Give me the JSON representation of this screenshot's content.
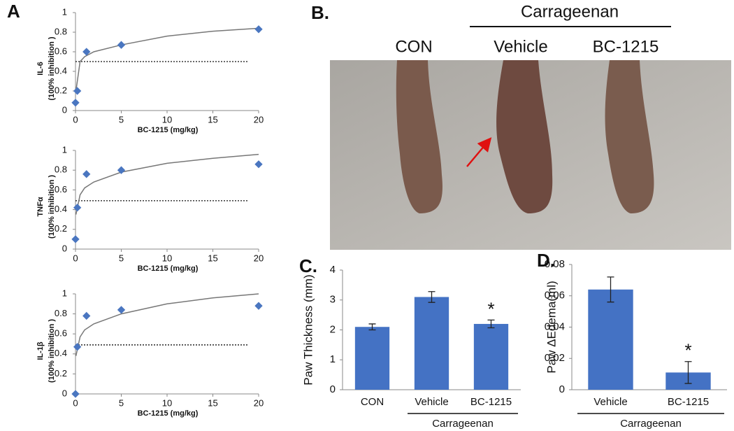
{
  "chart_data": [
    {
      "type": "scatter",
      "panel_label": "A",
      "ylabel": [
        "IL-6",
        "(100% inhibition )"
      ],
      "xlabel": "BC-1215 (mg/kg)",
      "x": [
        0,
        0.2,
        1.2,
        5,
        20
      ],
      "values": [
        0.08,
        0.2,
        0.6,
        0.67,
        0.83
      ],
      "color": "#4a76c0",
      "fit": {
        "x": [
          0.05,
          0.5,
          1,
          2,
          5,
          10,
          15,
          20
        ],
        "values": [
          0.2,
          0.5,
          0.55,
          0.6,
          0.67,
          0.76,
          0.81,
          0.84
        ],
        "color": "#777777"
      },
      "threshold": 0.5,
      "xlim": [
        0,
        20
      ],
      "xticks": [
        0,
        5,
        10,
        15,
        20
      ],
      "ylim": [
        0,
        1
      ],
      "yticks": [
        0,
        0.2,
        0.4,
        0.6,
        0.8,
        1
      ]
    },
    {
      "type": "scatter",
      "ylabel": [
        "TNFα",
        "(100% inhibition )"
      ],
      "xlabel": "BC-1215 (mg/kg)",
      "x": [
        0,
        0.2,
        1.2,
        5,
        20
      ],
      "values": [
        0.1,
        0.42,
        0.76,
        0.8,
        0.86
      ],
      "color": "#4a76c0",
      "fit": {
        "x": [
          0.05,
          0.5,
          1,
          2,
          5,
          10,
          15,
          20
        ],
        "values": [
          0.35,
          0.55,
          0.62,
          0.68,
          0.78,
          0.87,
          0.92,
          0.96
        ],
        "color": "#777777"
      },
      "threshold": 0.49,
      "xlim": [
        0,
        20
      ],
      "xticks": [
        0,
        5,
        10,
        15,
        20
      ],
      "ylim": [
        0,
        1
      ],
      "yticks": [
        0,
        0.2,
        0.4,
        0.6,
        0.8,
        1
      ]
    },
    {
      "type": "scatter",
      "ylabel": [
        "IL-1β",
        "(100% inhibition )"
      ],
      "xlabel": "BC-1215 (mg/kg)",
      "x": [
        0,
        0.2,
        1.2,
        5,
        20
      ],
      "values": [
        0,
        0.47,
        0.78,
        0.84,
        0.88
      ],
      "color": "#4a76c0",
      "fit": {
        "x": [
          0.05,
          0.5,
          1,
          2,
          5,
          10,
          15,
          20
        ],
        "values": [
          0.38,
          0.57,
          0.64,
          0.7,
          0.8,
          0.9,
          0.96,
          1.0
        ],
        "color": "#777777"
      },
      "threshold": 0.49,
      "xlim": [
        0,
        20
      ],
      "xticks": [
        0,
        5,
        10,
        15,
        20
      ],
      "ylim": [
        0,
        1
      ],
      "yticks": [
        0,
        0.2,
        0.4,
        0.6,
        0.8,
        1
      ]
    },
    {
      "type": "bar",
      "panel_label": "C.",
      "ylabel": "Paw Thickness (mm)",
      "categories": [
        "CON",
        "Vehicle",
        "BC-1215"
      ],
      "category_groups": [
        null,
        "Carrageenan",
        "Carrageenan"
      ],
      "values": [
        2.1,
        3.1,
        2.2
      ],
      "errors": [
        0.1,
        0.18,
        0.13
      ],
      "value_annotations": [
        null,
        null,
        "*"
      ],
      "color": "#4472c4",
      "ylim": [
        0,
        4
      ],
      "yticks": [
        0,
        1,
        2,
        3,
        4
      ]
    },
    {
      "type": "bar",
      "panel_label": "D.",
      "ylabel": "Paw ΔEdema(ml)",
      "categories": [
        "Vehicle",
        "BC-1215"
      ],
      "category_groups": [
        "Carrageenan",
        "Carrageenan"
      ],
      "values": [
        0.064,
        0.011
      ],
      "errors": [
        0.008,
        0.007
      ],
      "value_annotations": [
        null,
        "*"
      ],
      "color": "#4472c4",
      "ylim": [
        0,
        0.08
      ],
      "yticks": [
        0,
        0.02,
        0.04,
        0.06,
        0.08
      ]
    }
  ],
  "photo_panel": {
    "label": "B.",
    "group_label": "Carrageenan",
    "columns": [
      "CON",
      "Vehicle",
      "BC-1215"
    ]
  }
}
